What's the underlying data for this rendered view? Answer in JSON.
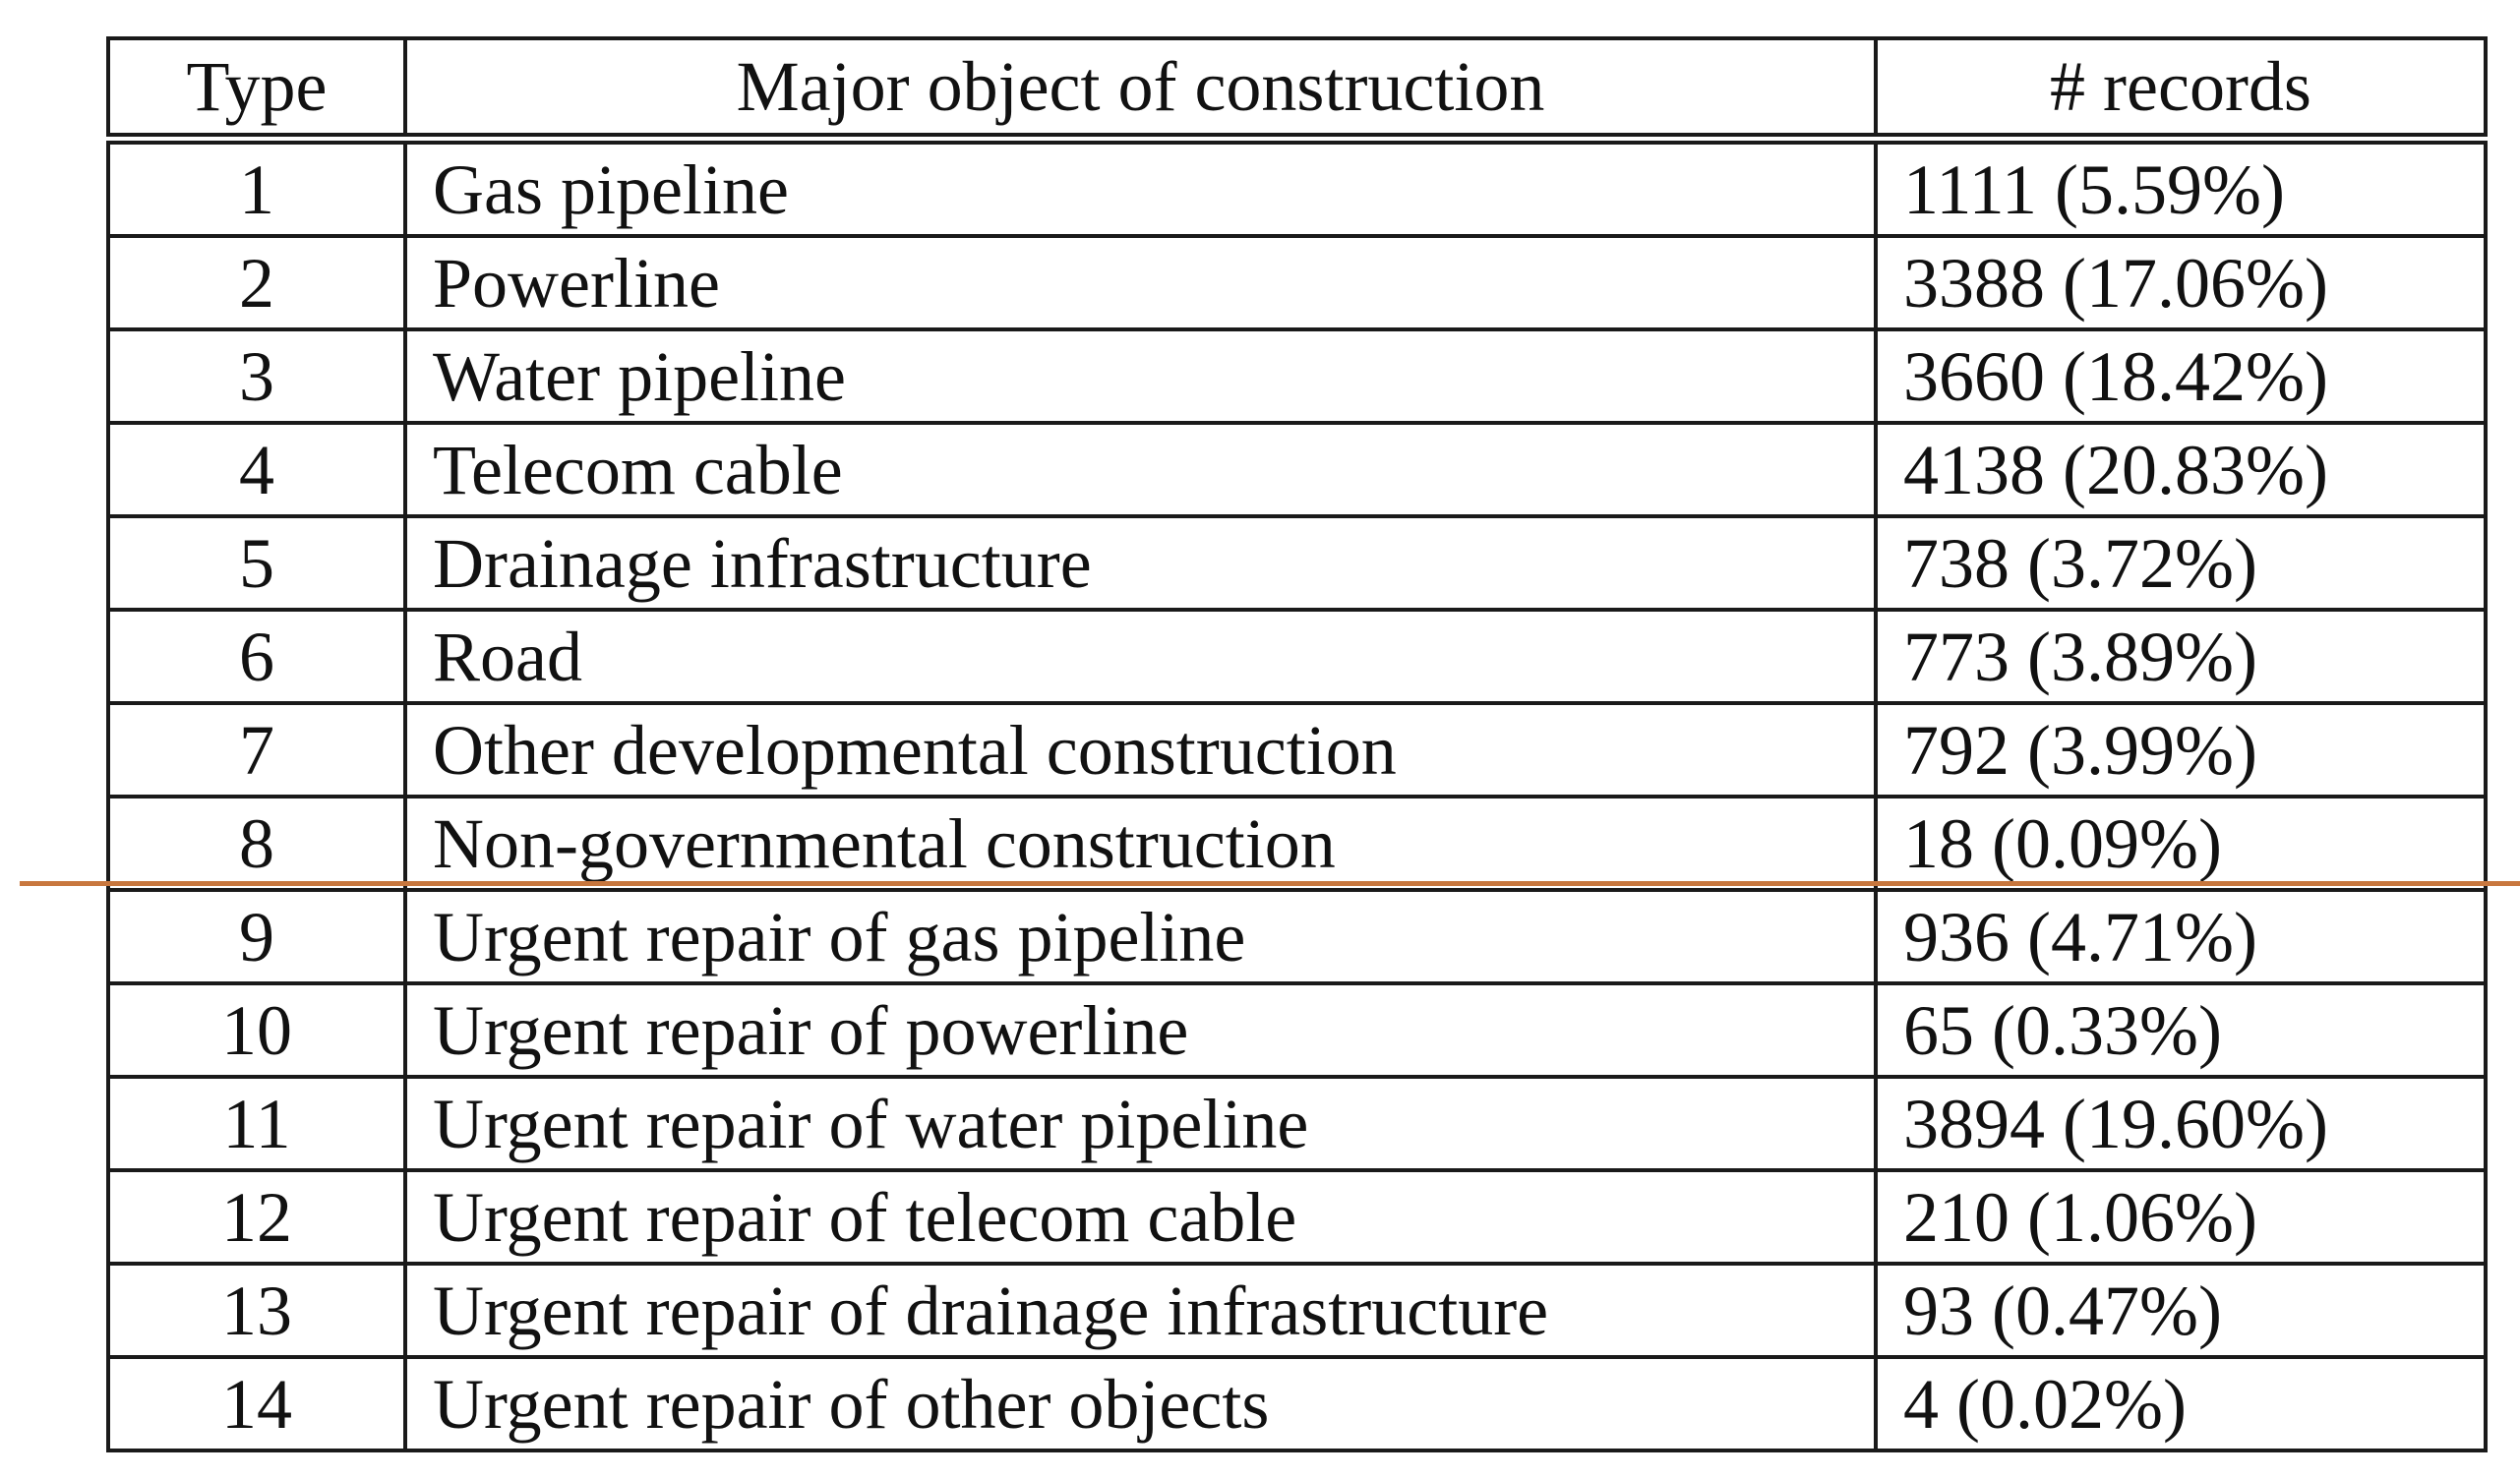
{
  "table": {
    "headers": {
      "type": "Type",
      "object": "Major object of construction",
      "records": "# records"
    },
    "rows": [
      {
        "type": "1",
        "object": "Gas pipeline",
        "records": "1111 (5.59%)"
      },
      {
        "type": "2",
        "object": "Powerline",
        "records": "3388 (17.06%)"
      },
      {
        "type": "3",
        "object": "Water pipeline",
        "records": "3660 (18.42%)"
      },
      {
        "type": "4",
        "object": "Telecom cable",
        "records": "4138 (20.83%)"
      },
      {
        "type": "5",
        "object": "Drainage infrastructure",
        "records": "738 (3.72%)"
      },
      {
        "type": "6",
        "object": "Road",
        "records": "773 (3.89%)"
      },
      {
        "type": "7",
        "object": "Other developmental construction",
        "records": "792 (3.99%)"
      },
      {
        "type": "8",
        "object": "Non-governmental construction",
        "records": "18 (0.09%)"
      },
      {
        "type": "9",
        "object": "Urgent repair of gas pipeline",
        "records": "936 (4.71%)"
      },
      {
        "type": "10",
        "object": "Urgent repair of powerline",
        "records": "65 (0.33%)"
      },
      {
        "type": "11",
        "object": "Urgent repair of water pipeline",
        "records": "3894 (19.60%)"
      },
      {
        "type": "12",
        "object": "Urgent repair of telecom cable",
        "records": "210 (1.06%)"
      },
      {
        "type": "13",
        "object": "Urgent repair of drainage infrastructure",
        "records": "93 (0.47%)"
      },
      {
        "type": "14",
        "object": "Urgent repair of other objects",
        "records": "4 (0.02%)"
      }
    ]
  },
  "divider": {
    "color": "#c8773e"
  }
}
